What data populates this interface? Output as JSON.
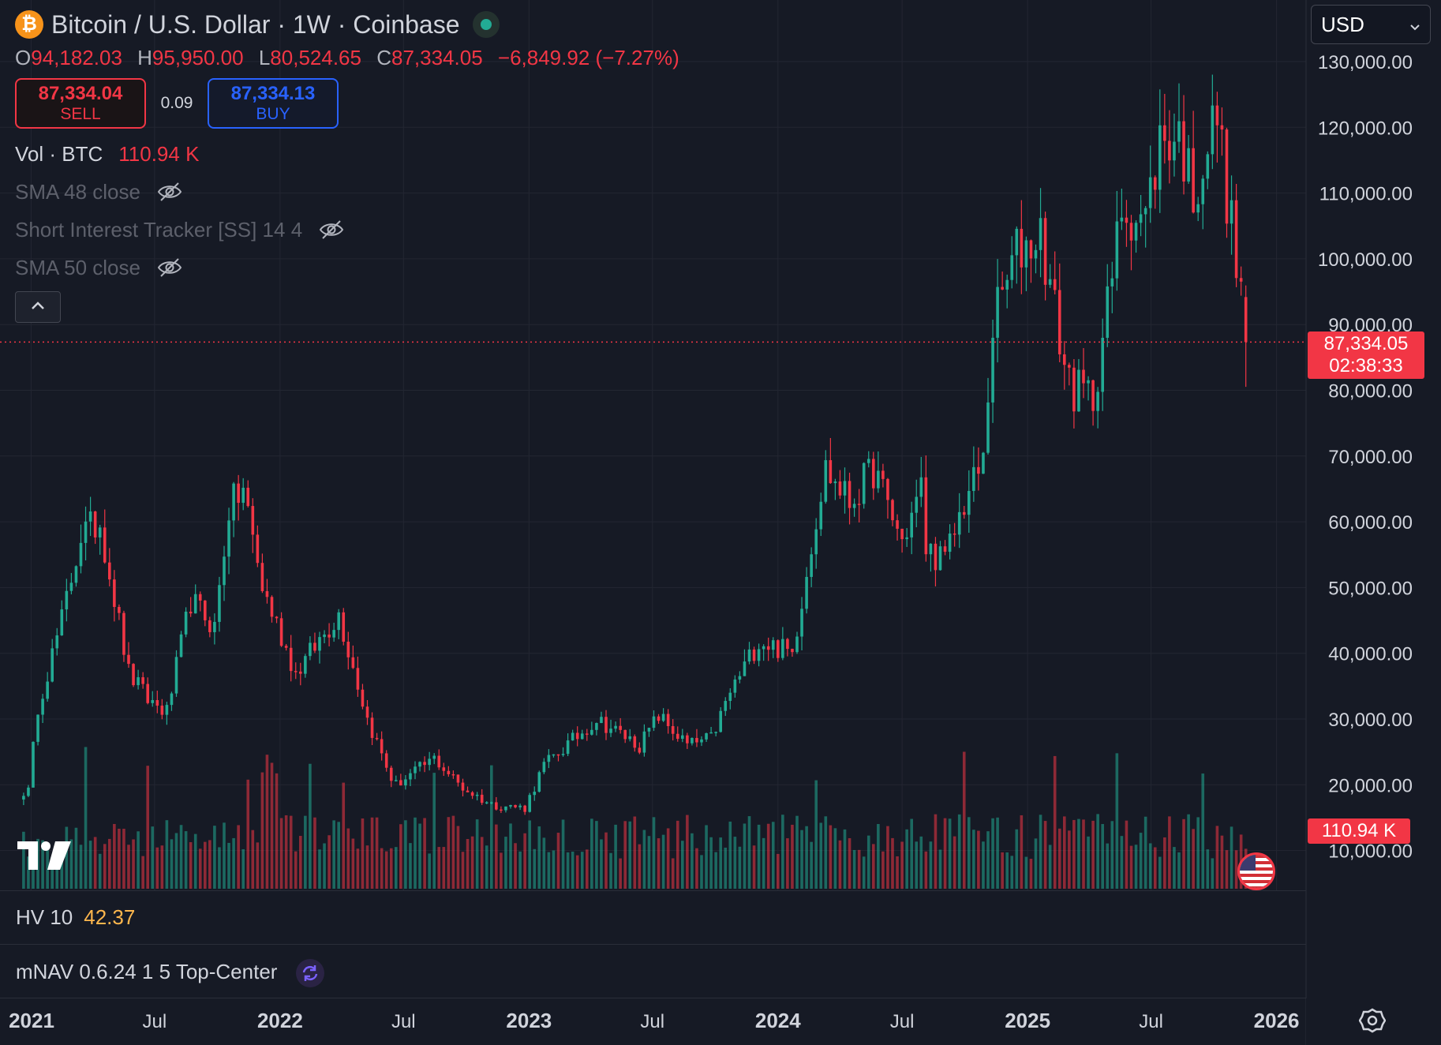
{
  "header": {
    "symbol_logo": "₿",
    "title": "Bitcoin / U.S. Dollar · 1W · Coinbase",
    "ohlc": {
      "o_label": "O",
      "o": "94,182.03",
      "h_label": "H",
      "h": "95,950.00",
      "l_label": "L",
      "l": "80,524.65",
      "c_label": "C",
      "c": "87,334.05",
      "change": "−6,849.92 (−7.27%)"
    },
    "sell": {
      "price": "87,334.04",
      "label": "SELL"
    },
    "spread": "0.09",
    "buy": {
      "price": "87,334.13",
      "label": "BUY"
    }
  },
  "indicators": {
    "vol_label": "Vol · BTC",
    "vol_value": "110.94 K",
    "sma48": "SMA 48 close",
    "short_interest": "Short Interest Tracker [SS] 14 4",
    "sma50": "SMA 50 close"
  },
  "currency": {
    "selected": "USD"
  },
  "price_tag": {
    "price": "87,334.05",
    "countdown": "02:38:33"
  },
  "volume_tag": "110.94 K",
  "panes": {
    "hv": {
      "label": "HV 10",
      "value": "42.37"
    },
    "mnav": {
      "label": "mNAV 0.6.24 1 5 Top-Center"
    }
  },
  "colors": {
    "up": "#22ab94",
    "down": "#f23645",
    "background": "#161a25",
    "grid": "#232632",
    "hv": "#ffb74d"
  },
  "icons": {
    "eye": "eye-off-icon",
    "collapse": "chevron-up-icon",
    "settings": "gear-icon",
    "sync": "sync-icon",
    "flag": "us-flag-icon"
  },
  "chart_data": {
    "type": "candlestick",
    "title": "Bitcoin / U.S. Dollar · 1W · Coinbase",
    "y_ticks": [
      "130,000.00",
      "120,000.00",
      "110,000.00",
      "100,000.00",
      "90,000.00",
      "80,000.00",
      "70,000.00",
      "60,000.00",
      "50,000.00",
      "40,000.00",
      "30,000.00",
      "20,000.00",
      "10,000.00"
    ],
    "x_ticks": [
      "2021",
      "Jul",
      "2022",
      "Jul",
      "2023",
      "Jul",
      "2024",
      "Jul",
      "2025",
      "Jul",
      "2026"
    ],
    "ylim": [
      5000,
      134000
    ],
    "xlim": [
      "2020-12-28",
      "2026-01-15"
    ],
    "last_price": 87334.05,
    "price_anchors": [
      {
        "date": "2020-12-28",
        "price": 19000
      },
      {
        "date": "2021-01-11",
        "price": 32000
      },
      {
        "date": "2021-02-15",
        "price": 45000
      },
      {
        "date": "2021-03-15",
        "price": 58000
      },
      {
        "date": "2021-04-12",
        "price": 60000
      },
      {
        "date": "2021-05-24",
        "price": 37000
      },
      {
        "date": "2021-06-21",
        "price": 33000
      },
      {
        "date": "2021-07-19",
        "price": 31000
      },
      {
        "date": "2021-08-23",
        "price": 48000
      },
      {
        "date": "2021-09-27",
        "price": 44000
      },
      {
        "date": "2021-10-18",
        "price": 62000
      },
      {
        "date": "2021-11-08",
        "price": 65000
      },
      {
        "date": "2021-12-06",
        "price": 50000
      },
      {
        "date": "2022-01-24",
        "price": 37000
      },
      {
        "date": "2022-03-28",
        "price": 46000
      },
      {
        "date": "2022-05-09",
        "price": 30000
      },
      {
        "date": "2022-06-13",
        "price": 21000
      },
      {
        "date": "2022-06-20",
        "price": 20000
      },
      {
        "date": "2022-08-15",
        "price": 24000
      },
      {
        "date": "2022-09-26",
        "price": 19500
      },
      {
        "date": "2022-11-07",
        "price": 17000
      },
      {
        "date": "2022-12-26",
        "price": 16500
      },
      {
        "date": "2023-01-23",
        "price": 23000
      },
      {
        "date": "2023-03-20",
        "price": 28000
      },
      {
        "date": "2023-04-10",
        "price": 30000
      },
      {
        "date": "2023-06-12",
        "price": 26000
      },
      {
        "date": "2023-07-10",
        "price": 30500
      },
      {
        "date": "2023-08-21",
        "price": 26000
      },
      {
        "date": "2023-09-25",
        "price": 27000
      },
      {
        "date": "2023-10-23",
        "price": 34000
      },
      {
        "date": "2023-12-04",
        "price": 42000
      },
      {
        "date": "2024-01-22",
        "price": 40000
      },
      {
        "date": "2024-02-26",
        "price": 61000
      },
      {
        "date": "2024-03-11",
        "price": 68000
      },
      {
        "date": "2024-04-15",
        "price": 63000
      },
      {
        "date": "2024-05-20",
        "price": 68000
      },
      {
        "date": "2024-07-01",
        "price": 57000
      },
      {
        "date": "2024-07-29",
        "price": 65000
      },
      {
        "date": "2024-08-05",
        "price": 56000
      },
      {
        "date": "2024-09-02",
        "price": 54000
      },
      {
        "date": "2024-09-30",
        "price": 63000
      },
      {
        "date": "2024-10-28",
        "price": 69000
      },
      {
        "date": "2024-11-11",
        "price": 90000
      },
      {
        "date": "2024-12-16",
        "price": 101000
      },
      {
        "date": "2025-01-20",
        "price": 104000
      },
      {
        "date": "2025-02-24",
        "price": 84000
      },
      {
        "date": "2025-03-10",
        "price": 80000
      },
      {
        "date": "2025-04-07",
        "price": 79000
      },
      {
        "date": "2025-05-05",
        "price": 97000
      },
      {
        "date": "2025-05-19",
        "price": 108000
      },
      {
        "date": "2025-06-23",
        "price": 106000
      },
      {
        "date": "2025-07-14",
        "price": 118000
      },
      {
        "date": "2025-08-11",
        "price": 119000
      },
      {
        "date": "2025-09-01",
        "price": 110000
      },
      {
        "date": "2025-10-06",
        "price": 122000
      },
      {
        "date": "2025-10-20",
        "price": 110000
      },
      {
        "date": "2025-11-10",
        "price": 94000
      },
      {
        "date": "2025-11-17",
        "price": 87334
      }
    ],
    "last_candle": {
      "open": 94182.03,
      "high": 95950.0,
      "low": 80524.65,
      "close": 87334.05
    },
    "volume": {
      "label": "Vol · BTC",
      "last": "110.94 K"
    }
  }
}
